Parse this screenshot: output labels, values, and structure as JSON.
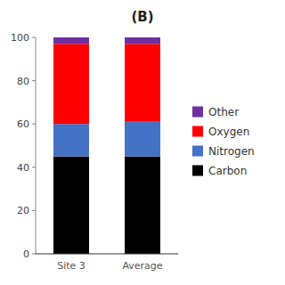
{
  "chart_data": {
    "type": "bar",
    "title": "(B)",
    "stacked": true,
    "legend": "right",
    "grid": false,
    "categories": [
      "Site 3",
      "Average"
    ],
    "series": [
      {
        "name": "Carbon",
        "color": "#000000",
        "values": [
          45,
          45
        ]
      },
      {
        "name": "Nitrogen",
        "color": "#4472C4",
        "values": [
          15,
          16
        ]
      },
      {
        "name": "Oxygen",
        "color": "#FF0000",
        "values": [
          37,
          36
        ]
      },
      {
        "name": "Other",
        "color": "#7030A0",
        "values": [
          3,
          3
        ]
      }
    ],
    "ylim": [
      0,
      100
    ],
    "yticks": [
      0,
      20,
      40,
      60,
      80,
      100
    ]
  }
}
